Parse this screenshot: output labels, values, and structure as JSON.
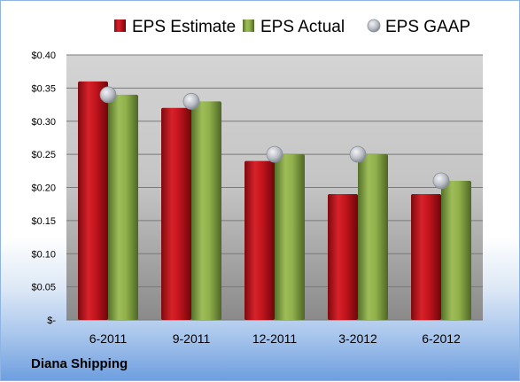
{
  "company": "Diana Shipping",
  "chart_data": {
    "type": "bar",
    "categories": [
      "6-2011",
      "9-2011",
      "12-2011",
      "3-2012",
      "6-2012"
    ],
    "series": [
      {
        "name": "EPS Estimate",
        "kind": "bar",
        "color": "#c0141c",
        "values": [
          0.36,
          0.32,
          0.24,
          0.19,
          0.19
        ]
      },
      {
        "name": "EPS Actual",
        "kind": "bar",
        "color": "#8fb04a",
        "values": [
          0.34,
          0.33,
          0.25,
          0.25,
          0.21
        ]
      },
      {
        "name": "EPS GAAP",
        "kind": "marker",
        "color": "#b8bcc4",
        "values": [
          0.34,
          0.33,
          0.25,
          0.25,
          0.21
        ]
      }
    ],
    "yticks": [
      "$0.40",
      "$0.35",
      "$0.30",
      "$0.25",
      "$0.20",
      "$0.15",
      "$0.10",
      "$0.05",
      "$-"
    ],
    "ylim": [
      0,
      0.4
    ],
    "grid": true,
    "legend_position": "top"
  }
}
